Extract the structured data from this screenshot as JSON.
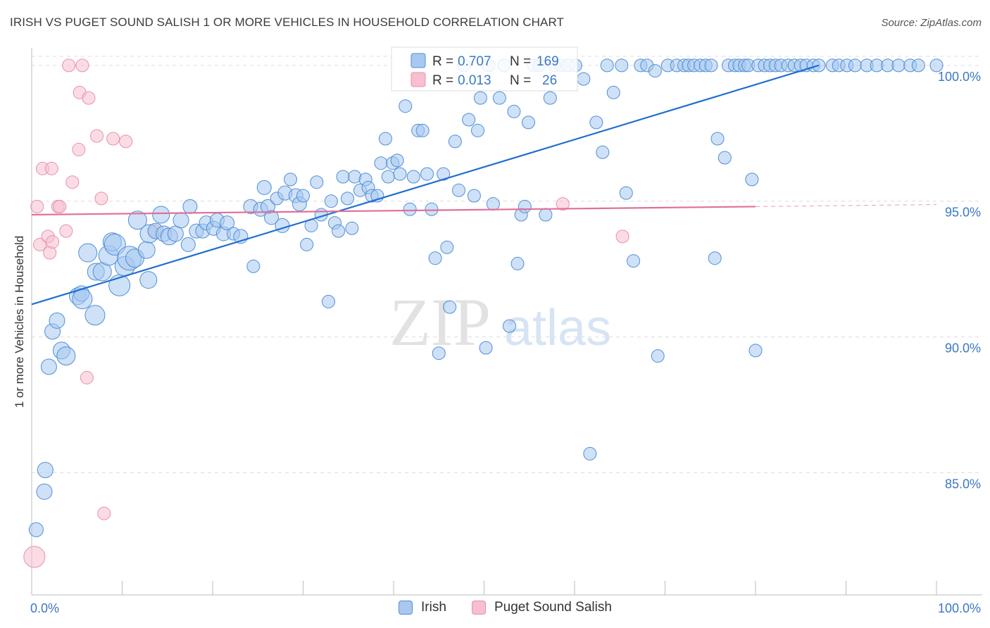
{
  "header": {
    "title": "IRISH VS PUGET SOUND SALISH 1 OR MORE VEHICLES IN HOUSEHOLD CORRELATION CHART",
    "source": "Source: ZipAtlas.com"
  },
  "watermark": {
    "zip": "ZIP",
    "atlas": "atlas"
  },
  "colors": {
    "irish_fill": "#a8c8f0",
    "irish_stroke": "#4f8fd6",
    "irish_line": "#1f6fd1",
    "salish_fill": "#f7bfd0",
    "salish_stroke": "#e890aa",
    "salish_line": "#e0709a",
    "tick_label": "#3b78c4",
    "grid": "#dcdcdc"
  },
  "chart_data": {
    "type": "scatter",
    "title": "IRISH VS PUGET SOUND SALISH 1 OR MORE VEHICLES IN HOUSEHOLD CORRELATION CHART",
    "xlabel": "",
    "ylabel": "1 or more Vehicles in Household",
    "xlim": [
      0,
      100
    ],
    "ylim": [
      80.5,
      100.8
    ],
    "x_tick_labels": [
      "0.0%",
      "100.0%"
    ],
    "y_ticks": [
      85,
      90,
      95,
      100
    ],
    "y_tick_labels": [
      "85.0%",
      "90.0%",
      "95.0%",
      "100.0%"
    ],
    "grid": true,
    "legend_position": "top-center",
    "stats": [
      {
        "series": "Irish",
        "r_label": "R =",
        "r_value": "0.707",
        "n_label": "N =",
        "n_value": "169"
      },
      {
        "series": "Puget Sound Salish",
        "r_label": "R =",
        "r_value": "0.013",
        "n_label": "N =",
        "n_value": "26"
      }
    ],
    "series": [
      {
        "name": "Irish",
        "trend": {
          "x1": 0,
          "y1": 91.2,
          "x2": 87,
          "y2": 100.0
        },
        "points": [
          [
            0.5,
            82.9,
            10
          ],
          [
            1.4,
            84.3,
            11
          ],
          [
            1.5,
            85.1,
            11
          ],
          [
            1.9,
            88.9,
            11
          ],
          [
            2.3,
            90.2,
            11
          ],
          [
            2.8,
            90.6,
            11
          ],
          [
            3.3,
            89.5,
            12
          ],
          [
            3.8,
            89.3,
            13
          ],
          [
            5.1,
            91.5,
            12
          ],
          [
            5.5,
            91.6,
            11
          ],
          [
            5.6,
            91.4,
            14
          ],
          [
            6.2,
            93.1,
            13
          ],
          [
            7.0,
            90.8,
            14
          ],
          [
            7.1,
            92.4,
            12
          ],
          [
            7.8,
            92.4,
            13
          ],
          [
            8.5,
            93.0,
            14
          ],
          [
            8.9,
            93.5,
            13
          ],
          [
            9.2,
            93.4,
            15
          ],
          [
            9.7,
            91.9,
            15
          ],
          [
            10.3,
            92.6,
            14
          ],
          [
            10.8,
            92.9,
            17
          ],
          [
            11.4,
            92.9,
            13
          ],
          [
            11.7,
            94.3,
            13
          ],
          [
            12.7,
            93.2,
            12
          ],
          [
            12.9,
            92.1,
            12
          ],
          [
            13.0,
            93.8,
            13
          ],
          [
            13.7,
            93.9,
            11
          ],
          [
            14.3,
            94.5,
            12
          ],
          [
            14.6,
            93.8,
            11
          ],
          [
            15.2,
            93.7,
            12
          ],
          [
            15.9,
            93.8,
            11
          ],
          [
            16.5,
            94.3,
            11
          ],
          [
            17.3,
            93.4,
            10
          ],
          [
            17.5,
            94.8,
            10
          ],
          [
            18.2,
            93.9,
            10
          ],
          [
            18.9,
            93.9,
            10
          ],
          [
            19.3,
            94.2,
            10
          ],
          [
            20.1,
            94.0,
            10
          ],
          [
            20.5,
            94.3,
            10
          ],
          [
            21.2,
            93.8,
            10
          ],
          [
            21.6,
            94.2,
            10
          ],
          [
            22.3,
            93.8,
            9
          ],
          [
            23.1,
            93.7,
            10
          ],
          [
            24.2,
            94.8,
            10
          ],
          [
            24.5,
            92.6,
            9
          ],
          [
            25.3,
            94.7,
            10
          ],
          [
            25.7,
            95.5,
            10
          ],
          [
            26.1,
            94.8,
            10
          ],
          [
            26.5,
            94.4,
            10
          ],
          [
            27.1,
            95.1,
            9
          ],
          [
            27.7,
            94.1,
            10
          ],
          [
            28.0,
            95.3,
            10
          ],
          [
            28.6,
            95.8,
            9
          ],
          [
            29.2,
            95.2,
            10
          ],
          [
            29.6,
            94.9,
            10
          ],
          [
            30.0,
            95.2,
            9
          ],
          [
            30.4,
            93.4,
            9
          ],
          [
            30.9,
            94.1,
            9
          ],
          [
            31.5,
            95.7,
            9
          ],
          [
            32.0,
            94.5,
            9
          ],
          [
            32.8,
            91.3,
            9
          ],
          [
            33.1,
            95.0,
            9
          ],
          [
            33.5,
            94.2,
            9
          ],
          [
            33.9,
            93.9,
            9
          ],
          [
            34.4,
            95.9,
            9
          ],
          [
            34.9,
            95.1,
            9
          ],
          [
            35.4,
            94.0,
            9
          ],
          [
            35.7,
            95.9,
            9
          ],
          [
            36.3,
            95.4,
            9
          ],
          [
            36.9,
            95.8,
            9
          ],
          [
            37.2,
            95.5,
            9
          ],
          [
            37.6,
            95.2,
            9
          ],
          [
            38.2,
            95.2,
            9
          ],
          [
            38.6,
            96.4,
            9
          ],
          [
            39.1,
            97.3,
            9
          ],
          [
            39.4,
            95.9,
            9
          ],
          [
            39.9,
            96.4,
            9
          ],
          [
            40.4,
            96.5,
            9
          ],
          [
            40.7,
            96.0,
            9
          ],
          [
            41.3,
            98.5,
            9
          ],
          [
            41.8,
            94.7,
            9
          ],
          [
            42.2,
            95.9,
            9
          ],
          [
            42.7,
            97.6,
            9
          ],
          [
            43.2,
            97.6,
            9
          ],
          [
            43.7,
            96.0,
            9
          ],
          [
            44.2,
            94.7,
            9
          ],
          [
            44.6,
            92.9,
            9
          ],
          [
            45.0,
            89.4,
            9
          ],
          [
            45.5,
            96.0,
            9
          ],
          [
            45.9,
            93.3,
            9
          ],
          [
            46.2,
            91.1,
            9
          ],
          [
            46.8,
            97.2,
            9
          ],
          [
            47.2,
            95.4,
            9
          ],
          [
            47.8,
            100.0,
            9
          ],
          [
            48.3,
            98.0,
            9
          ],
          [
            48.9,
            95.2,
            9
          ],
          [
            49.3,
            97.6,
            9
          ],
          [
            49.6,
            98.8,
            9
          ],
          [
            50.2,
            89.6,
            9
          ],
          [
            50.5,
            100.0,
            9
          ],
          [
            51.0,
            94.9,
            9
          ],
          [
            51.7,
            98.8,
            9
          ],
          [
            52.2,
            100.0,
            9
          ],
          [
            52.8,
            90.4,
            9
          ],
          [
            53.3,
            98.3,
            9
          ],
          [
            53.7,
            92.7,
            9
          ],
          [
            54.1,
            94.5,
            9
          ],
          [
            54.5,
            94.8,
            9
          ],
          [
            54.9,
            97.9,
            9
          ],
          [
            55.5,
            100.0,
            9
          ],
          [
            56.1,
            100.0,
            9
          ],
          [
            56.8,
            94.5,
            9
          ],
          [
            57.3,
            98.8,
            9
          ],
          [
            57.8,
            100.0,
            9
          ],
          [
            58.5,
            100.0,
            9
          ],
          [
            59.3,
            100.0,
            9
          ],
          [
            60.1,
            100.0,
            9
          ],
          [
            61.0,
            99.5,
            9
          ],
          [
            61.7,
            85.7,
            9
          ],
          [
            62.4,
            97.9,
            9
          ],
          [
            63.1,
            96.8,
            9
          ],
          [
            63.6,
            100.0,
            9
          ],
          [
            64.3,
            99.0,
            9
          ],
          [
            65.2,
            100.0,
            9
          ],
          [
            65.7,
            95.3,
            9
          ],
          [
            66.5,
            92.8,
            9
          ],
          [
            67.3,
            100.0,
            9
          ],
          [
            68.0,
            100.0,
            9
          ],
          [
            68.9,
            99.8,
            9
          ],
          [
            69.2,
            89.3,
            9
          ],
          [
            70.3,
            100.0,
            9
          ],
          [
            71.3,
            100.0,
            9
          ],
          [
            72.1,
            100.0,
            9
          ],
          [
            72.6,
            100.0,
            9
          ],
          [
            73.2,
            100.0,
            9
          ],
          [
            73.9,
            100.0,
            9
          ],
          [
            74.5,
            100.0,
            9
          ],
          [
            75.1,
            100.0,
            9
          ],
          [
            75.5,
            92.9,
            9
          ],
          [
            75.8,
            97.3,
            9
          ],
          [
            76.6,
            96.6,
            9
          ],
          [
            77.0,
            100.0,
            9
          ],
          [
            77.7,
            100.0,
            9
          ],
          [
            78.2,
            100.0,
            9
          ],
          [
            78.8,
            100.0,
            9
          ],
          [
            79.2,
            100.0,
            9
          ],
          [
            79.6,
            95.8,
            9
          ],
          [
            80.3,
            100.0,
            9
          ],
          [
            81.0,
            100.0,
            9
          ],
          [
            81.6,
            100.0,
            9
          ],
          [
            82.2,
            100.0,
            9
          ],
          [
            82.8,
            100.0,
            9
          ],
          [
            83.6,
            100.0,
            9
          ],
          [
            84.3,
            100.0,
            9
          ],
          [
            85.0,
            100.0,
            9
          ],
          [
            85.6,
            100.0,
            9
          ],
          [
            86.4,
            100.0,
            9
          ],
          [
            87.0,
            100.0,
            9
          ],
          [
            80.0,
            89.5,
            9
          ],
          [
            88.5,
            100.0,
            9
          ],
          [
            89.2,
            100.0,
            9
          ],
          [
            90.1,
            100.0,
            9
          ],
          [
            91.0,
            100.0,
            9
          ],
          [
            92.3,
            100.0,
            9
          ],
          [
            93.4,
            100.0,
            9
          ],
          [
            94.6,
            100.0,
            9
          ],
          [
            95.8,
            100.0,
            9
          ],
          [
            97.1,
            100.0,
            9
          ],
          [
            98.0,
            100.0,
            9
          ],
          [
            100.0,
            100.0,
            9
          ]
        ]
      },
      {
        "name": "Puget Sound Salish",
        "trend": {
          "x1": 0,
          "y1": 94.5,
          "x2": 80,
          "y2": 94.8
        },
        "points": [
          [
            0.3,
            81.9,
            15
          ],
          [
            0.6,
            94.8,
            9
          ],
          [
            0.9,
            93.4,
            9
          ],
          [
            1.2,
            96.2,
            9
          ],
          [
            1.8,
            93.7,
            9
          ],
          [
            2.0,
            93.1,
            9
          ],
          [
            2.2,
            96.2,
            9
          ],
          [
            2.3,
            93.5,
            9
          ],
          [
            2.9,
            94.8,
            9
          ],
          [
            3.1,
            94.8,
            9
          ],
          [
            3.8,
            93.9,
            9
          ],
          [
            4.1,
            100.0,
            9
          ],
          [
            4.5,
            95.7,
            9
          ],
          [
            5.2,
            96.9,
            9
          ],
          [
            5.3,
            99.0,
            9
          ],
          [
            5.6,
            100.0,
            9
          ],
          [
            6.1,
            88.5,
            9
          ],
          [
            6.3,
            98.8,
            9
          ],
          [
            7.2,
            97.4,
            9
          ],
          [
            7.7,
            95.1,
            9
          ],
          [
            8.0,
            83.5,
            9
          ],
          [
            9.0,
            97.3,
            9
          ],
          [
            10.4,
            97.2,
            9
          ],
          [
            13.6,
            93.9,
            9
          ],
          [
            58.7,
            94.9,
            9
          ],
          [
            65.3,
            93.7,
            9
          ]
        ]
      }
    ]
  }
}
